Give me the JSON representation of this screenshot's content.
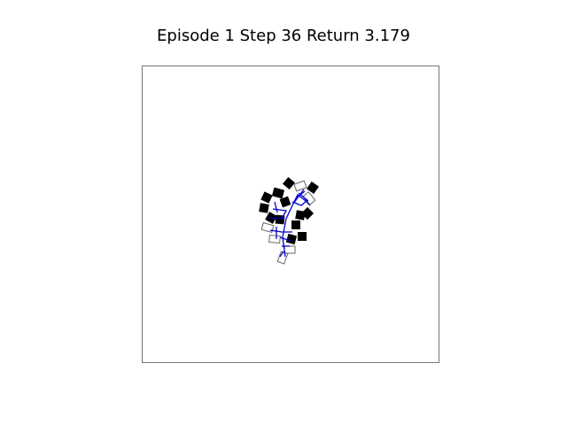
{
  "title": "Episode 1 Step 36 Return 3.179",
  "colors": {
    "background": "#ffffff",
    "frame": "#777777",
    "filled_block": "#000000",
    "outline_block": "#666666",
    "link": "#0000cc"
  }
}
